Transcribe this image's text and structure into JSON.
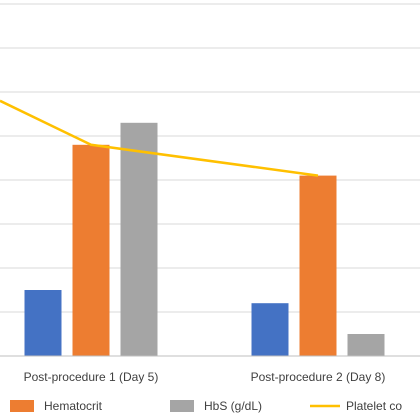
{
  "chart_data": {
    "type": "bar",
    "categories": [
      "Post-procedure 1 (Day 5)",
      "Post-procedure 2 (Day 8)"
    ],
    "series": [
      {
        "name": "",
        "kind": "bar",
        "color": "#4472c4",
        "values": [
          15,
          12
        ]
      },
      {
        "name": "Hematocrit",
        "kind": "bar",
        "color": "#ed7d31",
        "values": [
          48,
          41
        ]
      },
      {
        "name": "HbS (g/dL)",
        "kind": "bar",
        "color": "#a5a5a5",
        "values": [
          53,
          5
        ]
      },
      {
        "name": "Platelet co",
        "kind": "line",
        "color": "#ffc000",
        "values": [
          48,
          41
        ]
      }
    ],
    "line_start_value": 58,
    "ylim": [
      0,
      90
    ],
    "ygrid_step": 10,
    "grid": true,
    "legend_position": "bottom"
  }
}
